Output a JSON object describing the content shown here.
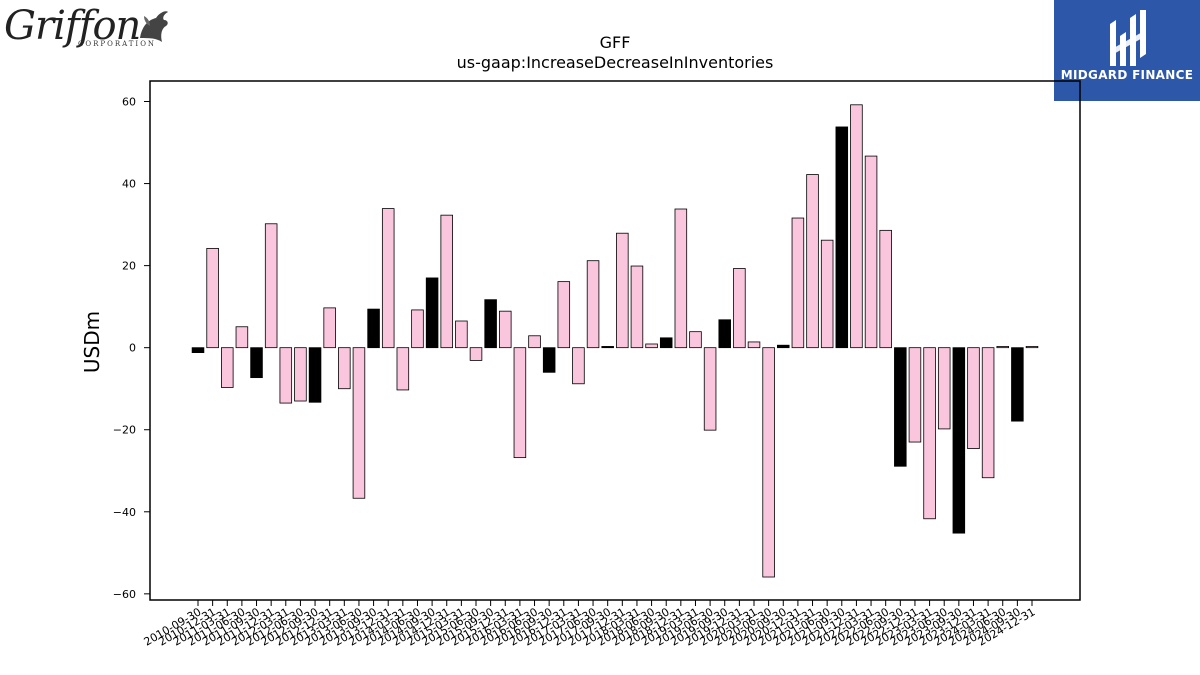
{
  "branding": {
    "left_logo": {
      "wordmark": "Griffon",
      "subtitle": "CORPORATION",
      "icon": "griffin-icon"
    },
    "right_logo": {
      "text": "MIDGARD FINANCE",
      "icon": "midgard-icon",
      "background": "#2d57a8"
    }
  },
  "chart_data": {
    "type": "bar",
    "title": "GFF",
    "subtitle": "us-gaap:IncreaseDecreaseInInventories",
    "xlabel": "",
    "ylabel": "USDm",
    "ylim": [
      -61.5,
      65
    ],
    "yticks": [
      -60,
      -40,
      -20,
      0,
      20,
      40,
      60
    ],
    "grid": false,
    "colors": {
      "q4": "#000000",
      "other": "#f9c6de",
      "edge": "#000000"
    },
    "categories": [
      "2010-09-30",
      "2010-12-31",
      "2011-03-31",
      "2011-06-30",
      "2011-09-30",
      "2011-12-31",
      "2012-03-31",
      "2012-06-30",
      "2012-09-30",
      "2012-12-31",
      "2013-03-31",
      "2013-06-30",
      "2013-09-30",
      "2013-12-31",
      "2014-03-31",
      "2014-06-30",
      "2014-09-30",
      "2014-12-31",
      "2015-03-31",
      "2015-06-30",
      "2015-09-30",
      "2015-12-31",
      "2016-03-31",
      "2016-06-30",
      "2016-09-30",
      "2016-12-31",
      "2017-03-31",
      "2017-06-30",
      "2017-09-30",
      "2017-12-31",
      "2018-03-31",
      "2018-06-30",
      "2018-09-30",
      "2018-12-31",
      "2019-03-31",
      "2019-06-30",
      "2019-09-30",
      "2019-12-31",
      "2020-03-31",
      "2020-06-30",
      "2020-09-30",
      "2020-12-31",
      "2021-03-31",
      "2021-06-30",
      "2021-09-30",
      "2021-12-31",
      "2022-03-31",
      "2022-06-30",
      "2022-09-30",
      "2022-12-31",
      "2023-03-31",
      "2023-06-30",
      "2023-09-30",
      "2023-12-31",
      "2024-03-31",
      "2024-06-30",
      "2024-09-30",
      "2024-12-31"
    ],
    "values": [
      -1.2,
      24.2,
      -9.7,
      5.1,
      -7.3,
      30.2,
      -13.5,
      -13.0,
      -13.3,
      9.7,
      -10.0,
      -36.7,
      9.4,
      33.9,
      -10.3,
      9.2,
      17.0,
      32.3,
      6.5,
      -3.1,
      11.7,
      8.9,
      -26.8,
      2.9,
      -6.0,
      16.1,
      -8.8,
      21.2,
      0.3,
      27.9,
      19.9,
      0.9,
      2.4,
      33.8,
      3.9,
      -20.1,
      6.8,
      19.3,
      1.4,
      -55.9,
      0.6,
      31.6,
      42.2,
      26.2,
      53.8,
      59.2,
      46.7,
      28.6,
      -28.9,
      -23.0,
      -41.7,
      -19.8,
      -45.2,
      -24.6,
      -31.7,
      0.3,
      -17.9,
      0.3
    ],
    "q4_flags": [
      1,
      0,
      0,
      0,
      1,
      0,
      0,
      0,
      1,
      0,
      0,
      0,
      1,
      0,
      0,
      0,
      1,
      0,
      0,
      0,
      1,
      0,
      0,
      0,
      1,
      0,
      0,
      0,
      1,
      0,
      0,
      0,
      1,
      0,
      0,
      0,
      1,
      0,
      0,
      0,
      1,
      0,
      0,
      0,
      1,
      0,
      0,
      0,
      1,
      0,
      0,
      0,
      1,
      0,
      0,
      0,
      1,
      0
    ],
    "_comment_flags": "first bar of each fiscal year pattern; black bars are fiscal Q4 (September quarters)"
  }
}
